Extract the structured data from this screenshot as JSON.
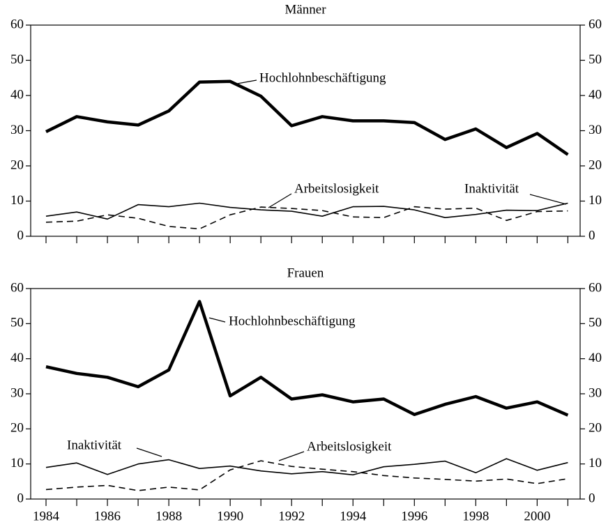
{
  "chart_data": [
    {
      "type": "line",
      "title": "Männer",
      "x": [
        1984,
        1985,
        1986,
        1987,
        1988,
        1989,
        1990,
        1991,
        1992,
        1993,
        1994,
        1995,
        1996,
        1997,
        1998,
        1999,
        2000,
        2001
      ],
      "xlim": [
        1983.5,
        2001.4
      ],
      "xminorticks": [
        1984,
        1985,
        1986,
        1987,
        1988,
        1989,
        1990,
        1991,
        1992,
        1993,
        1994,
        1995,
        1996,
        1997,
        1998,
        1999,
        2000,
        2001
      ],
      "ylim": [
        0,
        60
      ],
      "yticks": [
        0,
        10,
        20,
        30,
        40,
        50,
        60
      ],
      "series": [
        {
          "name": "Hochlohnbeschäftigung",
          "color": "#000",
          "style": "thick",
          "values": [
            29.7,
            34,
            32.5,
            31.6,
            35.6,
            43.8,
            44,
            39.8,
            31.4,
            34,
            32.8,
            32.8,
            32.3,
            27.5,
            30.5,
            25.2,
            29.2,
            23.2
          ]
        },
        {
          "name": "Arbeitslosigkeit",
          "color": "#000",
          "style": "dashed",
          "values": [
            4,
            4.3,
            6.1,
            5.1,
            2.8,
            2.1,
            6.1,
            8.3,
            7.9,
            7.3,
            5.5,
            5.3,
            8.4,
            7.7,
            8.0,
            4.5,
            7,
            7.2
          ]
        },
        {
          "name": "Inaktivität",
          "color": "#000",
          "style": "thin",
          "values": [
            5.7,
            6.9,
            4.9,
            9,
            8.4,
            9.4,
            8.2,
            7.5,
            7.1,
            5.7,
            8.4,
            8.5,
            7.5,
            5.3,
            6.2,
            7.4,
            7.3,
            9.4
          ]
        }
      ]
    },
    {
      "type": "line",
      "title": "Frauen",
      "x": [
        1984,
        1985,
        1986,
        1987,
        1988,
        1989,
        1990,
        1991,
        1992,
        1993,
        1994,
        1995,
        1996,
        1997,
        1998,
        1999,
        2000,
        2001
      ],
      "xlim": [
        1983.5,
        2001.4
      ],
      "xticks": [
        1984,
        1986,
        1988,
        1990,
        1992,
        1994,
        1996,
        1998,
        2000
      ],
      "xminorticks": [
        1985,
        1987,
        1989,
        1991,
        1993,
        1995,
        1997,
        1999,
        2001
      ],
      "ylim": [
        0,
        60
      ],
      "yticks": [
        0,
        10,
        20,
        30,
        40,
        50,
        60
      ],
      "series": [
        {
          "name": "Hochlohnbeschäftigung",
          "color": "#000",
          "style": "thick",
          "values": [
            37.7,
            35.8,
            34.7,
            32,
            36.8,
            56.3,
            29.4,
            34.7,
            28.5,
            29.7,
            27.7,
            28.5,
            24.1,
            27,
            29.2,
            25.9,
            27.7,
            23.9
          ]
        },
        {
          "name": "Inaktivität",
          "color": "#000",
          "style": "thin",
          "values": [
            9,
            10.3,
            7,
            10,
            11.2,
            8.7,
            9.4,
            8,
            7.2,
            7.8,
            6.9,
            9.2,
            9.9,
            10.8,
            7.5,
            11.5,
            8.2,
            10.4
          ]
        },
        {
          "name": "Arbeitslosigkeit",
          "color": "#000",
          "style": "dashed",
          "values": [
            2.7,
            3.4,
            3.9,
            2.4,
            3.4,
            2.6,
            8.3,
            10.9,
            9.3,
            8.5,
            7.8,
            6.7,
            6,
            5.6,
            5.1,
            5.7,
            4.4,
            5.8
          ]
        }
      ]
    }
  ]
}
